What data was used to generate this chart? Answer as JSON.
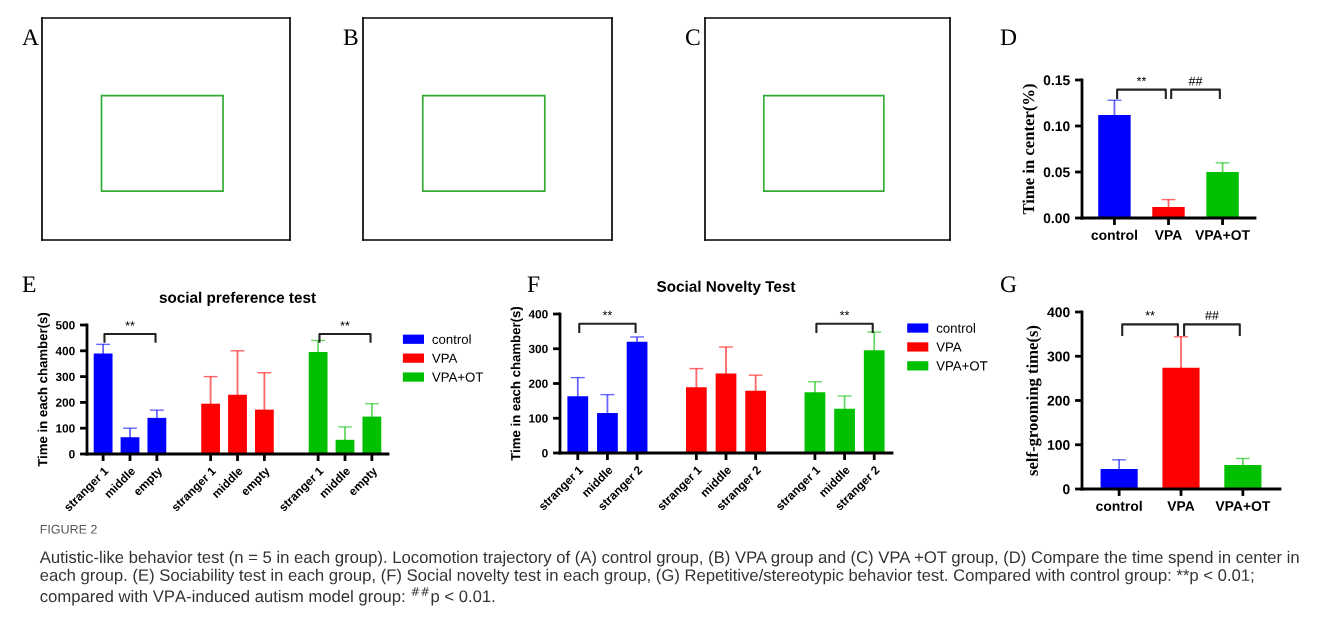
{
  "chart_data": [
    {
      "type": "other",
      "title": "A"
    },
    {
      "type": "other",
      "title": "B"
    },
    {
      "type": "other",
      "title": "C"
    },
    {
      "type": "bar",
      "categories": [
        "control",
        "VPA",
        "VPA+OT"
      ],
      "values": [
        0.112,
        0.012,
        0.05
      ],
      "errors": [
        0.016,
        0.008,
        0.01
      ],
      "colors": [
        "#0000ff",
        "#ff0000",
        "#00c000"
      ],
      "ylabel": "Time in center(%)",
      "ylim": [
        0,
        0.15
      ],
      "yticks": [
        {
          "value": 0,
          "label": "0.00"
        },
        {
          "value": 0.05,
          "label": "0.05"
        },
        {
          "value": 0.1,
          "label": "0.10"
        },
        {
          "value": 0.15,
          "label": "0.15"
        }
      ],
      "annotations": [
        "D",
        "**",
        "##"
      ]
    },
    {
      "type": "bar",
      "title": "social preference test",
      "categories": [
        "stranger 1",
        "middle",
        "empty",
        null,
        "stranger 1",
        "middle",
        "empty",
        null,
        "stranger 1",
        "middle",
        "empty"
      ],
      "series": [
        {
          "name": "control",
          "color": "#0000ff",
          "values": [
            390,
            65,
            140,
            null,
            null,
            null,
            null,
            null,
            null,
            null,
            null
          ],
          "errors": [
            35,
            35,
            30,
            null,
            null,
            null,
            null,
            null,
            null,
            null,
            null
          ]
        },
        {
          "name": "VPA",
          "color": "#ff0000",
          "values": [
            null,
            null,
            null,
            null,
            195,
            230,
            172,
            null,
            null,
            null,
            null
          ],
          "errors": [
            null,
            null,
            null,
            null,
            105,
            170,
            143,
            null,
            null,
            null,
            null
          ]
        },
        {
          "name": "VPA+OT",
          "color": "#00c000",
          "values": [
            null,
            null,
            null,
            null,
            null,
            null,
            null,
            null,
            395,
            55,
            145
          ],
          "errors": [
            null,
            null,
            null,
            null,
            null,
            null,
            null,
            null,
            45,
            50,
            50
          ]
        }
      ],
      "ylabel": "Time in each chamber(s)",
      "ylim": [
        0,
        500
      ],
      "yticks": [
        0,
        100,
        200,
        300,
        400,
        500
      ],
      "legend": "right",
      "annotations": [
        "E",
        "**",
        "**"
      ]
    },
    {
      "type": "bar",
      "title": "Social Novelty Test",
      "categories": [
        "stranger 1",
        "middle",
        "stranger 2",
        null,
        "stranger 1",
        "middle",
        "stranger 2",
        null,
        "stranger 1",
        "middle",
        "stranger 2"
      ],
      "series": [
        {
          "name": "control",
          "color": "#0000ff",
          "values": [
            163,
            115,
            320,
            null,
            null,
            null,
            null,
            null,
            null,
            null,
            null
          ],
          "errors": [
            54,
            53,
            14,
            null,
            null,
            null,
            null,
            null,
            null,
            null,
            null
          ]
        },
        {
          "name": "VPA",
          "color": "#ff0000",
          "values": [
            null,
            null,
            null,
            null,
            189,
            229,
            179,
            null,
            null,
            null,
            null
          ],
          "errors": [
            null,
            null,
            null,
            null,
            54,
            76,
            45,
            null,
            null,
            null,
            null
          ]
        },
        {
          "name": "VPA+OT",
          "color": "#00c000",
          "values": [
            null,
            null,
            null,
            null,
            null,
            null,
            null,
            null,
            175,
            127,
            296
          ],
          "errors": [
            null,
            null,
            null,
            null,
            null,
            null,
            null,
            null,
            30,
            37,
            52
          ]
        }
      ],
      "ylabel": "Time in each chamber(s)",
      "ylim": [
        0,
        400
      ],
      "yticks": [
        0,
        100,
        200,
        300,
        400
      ],
      "legend": "right",
      "annotations": [
        "F",
        "**",
        "**"
      ]
    },
    {
      "type": "bar",
      "categories": [
        "control",
        "VPA",
        "VPA+OT"
      ],
      "values": [
        45,
        274,
        54
      ],
      "errors": [
        21,
        70,
        15
      ],
      "colors": [
        "#0000ff",
        "#ff0000",
        "#00c000"
      ],
      "ylabel": "self-grooming time(s)",
      "ylim": [
        0,
        400
      ],
      "yticks": [
        0,
        100,
        200,
        300,
        400
      ],
      "annotations": [
        "G",
        "**",
        "##"
      ]
    },
    {
      "type": "other",
      "title": "FIGURE 2",
      "annotations": [
        "Autistic-like behavior test (n = 5 in each group). Locomotion trajectory of (A) control group, (B) VPA group and (C) VPA +OT group, (D) Compare the time spend in center in each group. (E) Sociability test in each group, (F) Social novelty test in each group, (G) Repetitive/stereotypic behavior test. Compared with control group: **p < 0.01; compared with VPA-induced autism model group: $^{##}$p < 0.01."
      ]
    }
  ]
}
